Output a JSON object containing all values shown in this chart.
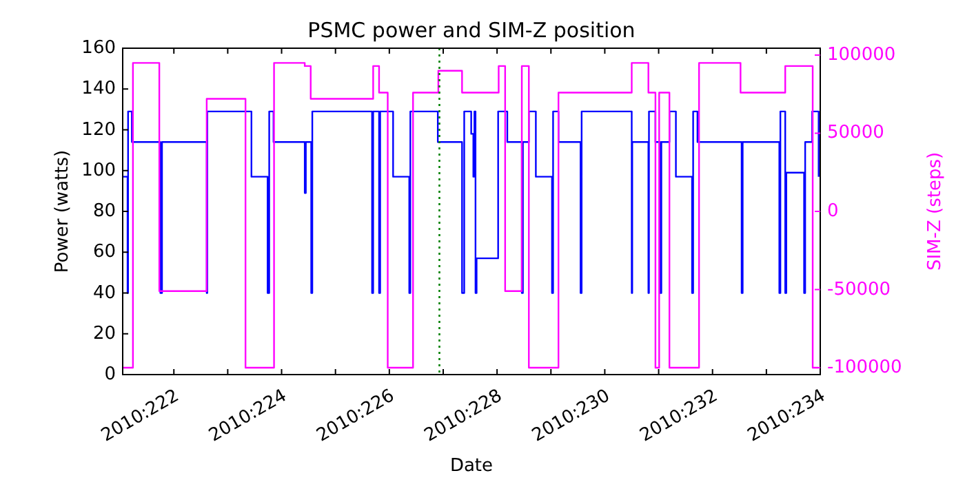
{
  "chart_data": {
    "type": "step",
    "title": "PSMC power and SIM-Z position",
    "xlabel": "Date",
    "ylabel": "Power (watts)",
    "y2label": "SIM-Z (steps)",
    "xlim": [
      "2010-08-09T01:12",
      "2010-08-22T00:00"
    ],
    "xticks": [
      {
        "value": "2010-08-10",
        "label": "2010:222"
      },
      {
        "value": "2010-08-11",
        "label": null
      },
      {
        "value": "2010-08-12",
        "label": "2010:224"
      },
      {
        "value": "2010-08-13",
        "label": null
      },
      {
        "value": "2010-08-14",
        "label": "2010:226"
      },
      {
        "value": "2010-08-15",
        "label": null
      },
      {
        "value": "2010-08-16",
        "label": "2010:228"
      },
      {
        "value": "2010-08-17",
        "label": null
      },
      {
        "value": "2010-08-18",
        "label": "2010:230"
      },
      {
        "value": "2010-08-19",
        "label": null
      },
      {
        "value": "2010-08-20",
        "label": "2010:232"
      },
      {
        "value": "2010-08-21",
        "label": null
      },
      {
        "value": "2010-08-22",
        "label": "2010:234"
      }
    ],
    "ylim": [
      0,
      160
    ],
    "yticks": [
      0,
      20,
      40,
      60,
      80,
      100,
      120,
      140,
      160
    ],
    "y2lim": [
      -104400,
      104400
    ],
    "y2ticks": [
      -100000,
      -50000,
      0,
      50000,
      100000
    ],
    "grid": false,
    "marker": "none",
    "line_style": "solid",
    "ref_lines": [
      {
        "axis": "x",
        "value": "2010-08-14T22:19",
        "color": "#008000",
        "line_style": "dotted"
      }
    ],
    "series": [
      {
        "color": "#0000ff",
        "x": [
          "2010-08-09T01:12",
          "2010-08-09T03:22",
          "2010-08-09T03:36",
          "2010-08-09T05:17",
          "2010-08-09T18:00",
          "2010-08-09T18:43",
          "2010-08-10T14:38",
          "2010-08-10T14:53",
          "2010-08-11T10:34",
          "2010-08-11T17:46",
          "2010-08-11T18:29",
          "2010-08-11T20:24",
          "2010-08-12T10:19",
          "2010-08-12T10:48",
          "2010-08-12T13:12",
          "2010-08-12T13:41",
          "2010-08-13T16:19",
          "2010-08-13T16:48",
          "2010-08-13T19:26",
          "2010-08-13T19:55",
          "2010-08-14T01:41",
          "2010-08-14T08:53",
          "2010-08-14T09:22",
          "2010-08-14T21:36",
          "2010-08-15T08:24",
          "2010-08-15T09:22",
          "2010-08-15T12:29",
          "2010-08-15T13:26",
          "2010-08-15T13:55",
          "2010-08-15T14:24",
          "2010-08-15T14:53",
          "2010-08-16T00:29",
          "2010-08-16T04:34",
          "2010-08-16T11:02",
          "2010-08-16T11:31",
          "2010-08-16T14:10",
          "2010-08-16T17:17",
          "2010-08-17T00:29",
          "2010-08-17T00:58",
          "2010-08-17T03:22",
          "2010-08-17T13:12",
          "2010-08-17T13:41",
          "2010-08-18T12:00",
          "2010-08-18T12:14",
          "2010-08-18T19:26",
          "2010-08-18T19:41",
          "2010-08-18T22:34",
          "2010-08-19T00:43",
          "2010-08-19T01:12",
          "2010-08-19T04:48",
          "2010-08-19T07:41",
          "2010-08-19T14:53",
          "2010-08-19T15:22",
          "2010-08-19T17:17",
          "2010-08-20T12:58",
          "2010-08-20T13:26",
          "2010-08-21T05:46",
          "2010-08-21T06:14",
          "2010-08-21T08:24",
          "2010-08-21T08:53",
          "2010-08-21T16:48",
          "2010-08-21T17:17",
          "2010-08-21T20:24",
          "2010-08-21T23:17"
        ],
        "values": [
          97,
          40,
          129,
          114,
          40,
          114,
          40,
          129,
          97,
          40,
          129,
          114,
          89,
          114,
          40,
          129,
          40,
          129,
          40,
          129,
          97,
          40,
          129,
          114,
          40,
          129,
          118,
          97,
          129,
          40,
          57,
          129,
          114,
          40,
          114,
          129,
          97,
          40,
          129,
          114,
          40,
          129,
          40,
          114,
          40,
          129,
          114,
          40,
          114,
          129,
          97,
          40,
          129,
          114,
          40,
          114,
          40,
          129,
          40,
          99,
          40,
          114,
          129,
          97
        ]
      },
      {
        "color": "#ff00ff",
        "axis": "y2",
        "x": [
          "2010-08-09T01:12",
          "2010-08-09T05:46",
          "2010-08-09T17:31",
          "2010-08-10T14:38",
          "2010-08-11T07:55",
          "2010-08-11T20:38",
          "2010-08-12T10:19",
          "2010-08-12T12:58",
          "2010-08-13T16:48",
          "2010-08-13T19:26",
          "2010-08-13T23:17",
          "2010-08-14T10:34",
          "2010-08-14T21:50",
          "2010-08-15T08:24",
          "2010-08-16T00:43",
          "2010-08-16T03:36",
          "2010-08-16T11:02",
          "2010-08-16T14:10",
          "2010-08-17T03:22",
          "2010-08-18T12:00",
          "2010-08-18T19:26",
          "2010-08-18T22:34",
          "2010-08-19T00:14",
          "2010-08-19T04:48",
          "2010-08-19T18:00",
          "2010-08-20T12:29",
          "2010-08-21T08:24",
          "2010-08-21T20:38",
          "2010-08-21T23:17"
        ],
        "values": [
          -100000,
          95000,
          -51000,
          72000,
          -100000,
          95000,
          93000,
          72000,
          93000,
          76000,
          -100000,
          76000,
          90000,
          76000,
          93000,
          -51000,
          93000,
          -100000,
          76000,
          95000,
          76000,
          -100000,
          76000,
          -100000,
          95000,
          76000,
          93000,
          -100000,
          -100000
        ]
      }
    ]
  }
}
